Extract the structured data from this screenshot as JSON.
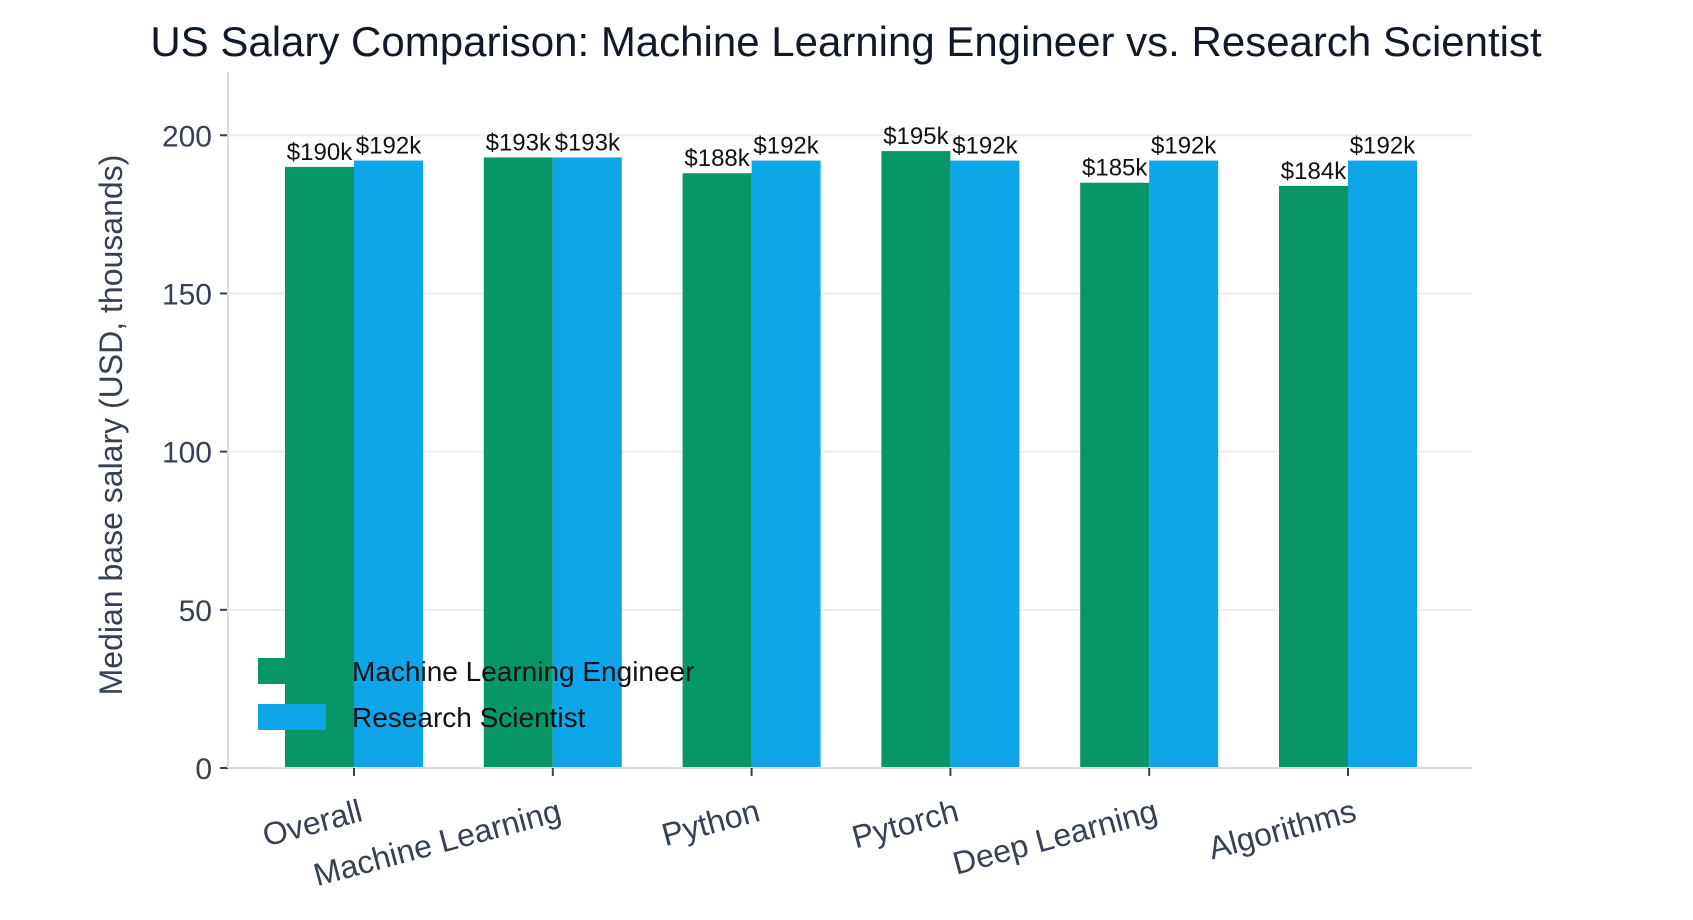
{
  "chart_data": {
    "type": "bar",
    "title": "US Salary Comparison: Machine Learning Engineer vs. Research Scientist",
    "xlabel": "",
    "ylabel": "Median base salary (USD, thousands)",
    "categories": [
      "Overall",
      "Machine Learning",
      "Python",
      "Pytorch",
      "Deep Learning",
      "Algorithms"
    ],
    "series": [
      {
        "name": "Machine Learning Engineer",
        "color": "#069668",
        "values": [
          190,
          193,
          188,
          195,
          185,
          184
        ],
        "labels": [
          "$190k",
          "$193k",
          "$188k",
          "$195k",
          "$185k",
          "$184k"
        ]
      },
      {
        "name": "Research Scientist",
        "color": "#0ea5e9",
        "values": [
          192,
          193,
          192,
          192,
          192,
          192
        ],
        "labels": [
          "$192k",
          "$193k",
          "$192k",
          "$192k",
          "$192k",
          "$192k"
        ]
      }
    ],
    "ylim": [
      0,
      220
    ],
    "yticks": [
      0,
      50,
      100,
      150,
      200
    ],
    "ytick_labels": [
      "0",
      "50",
      "100",
      "150",
      "200"
    ],
    "grid": true,
    "legend_position": "lower-left",
    "colors": {
      "grid": "#eeeeee",
      "axis": "#dddddd",
      "text": "#374151"
    }
  }
}
